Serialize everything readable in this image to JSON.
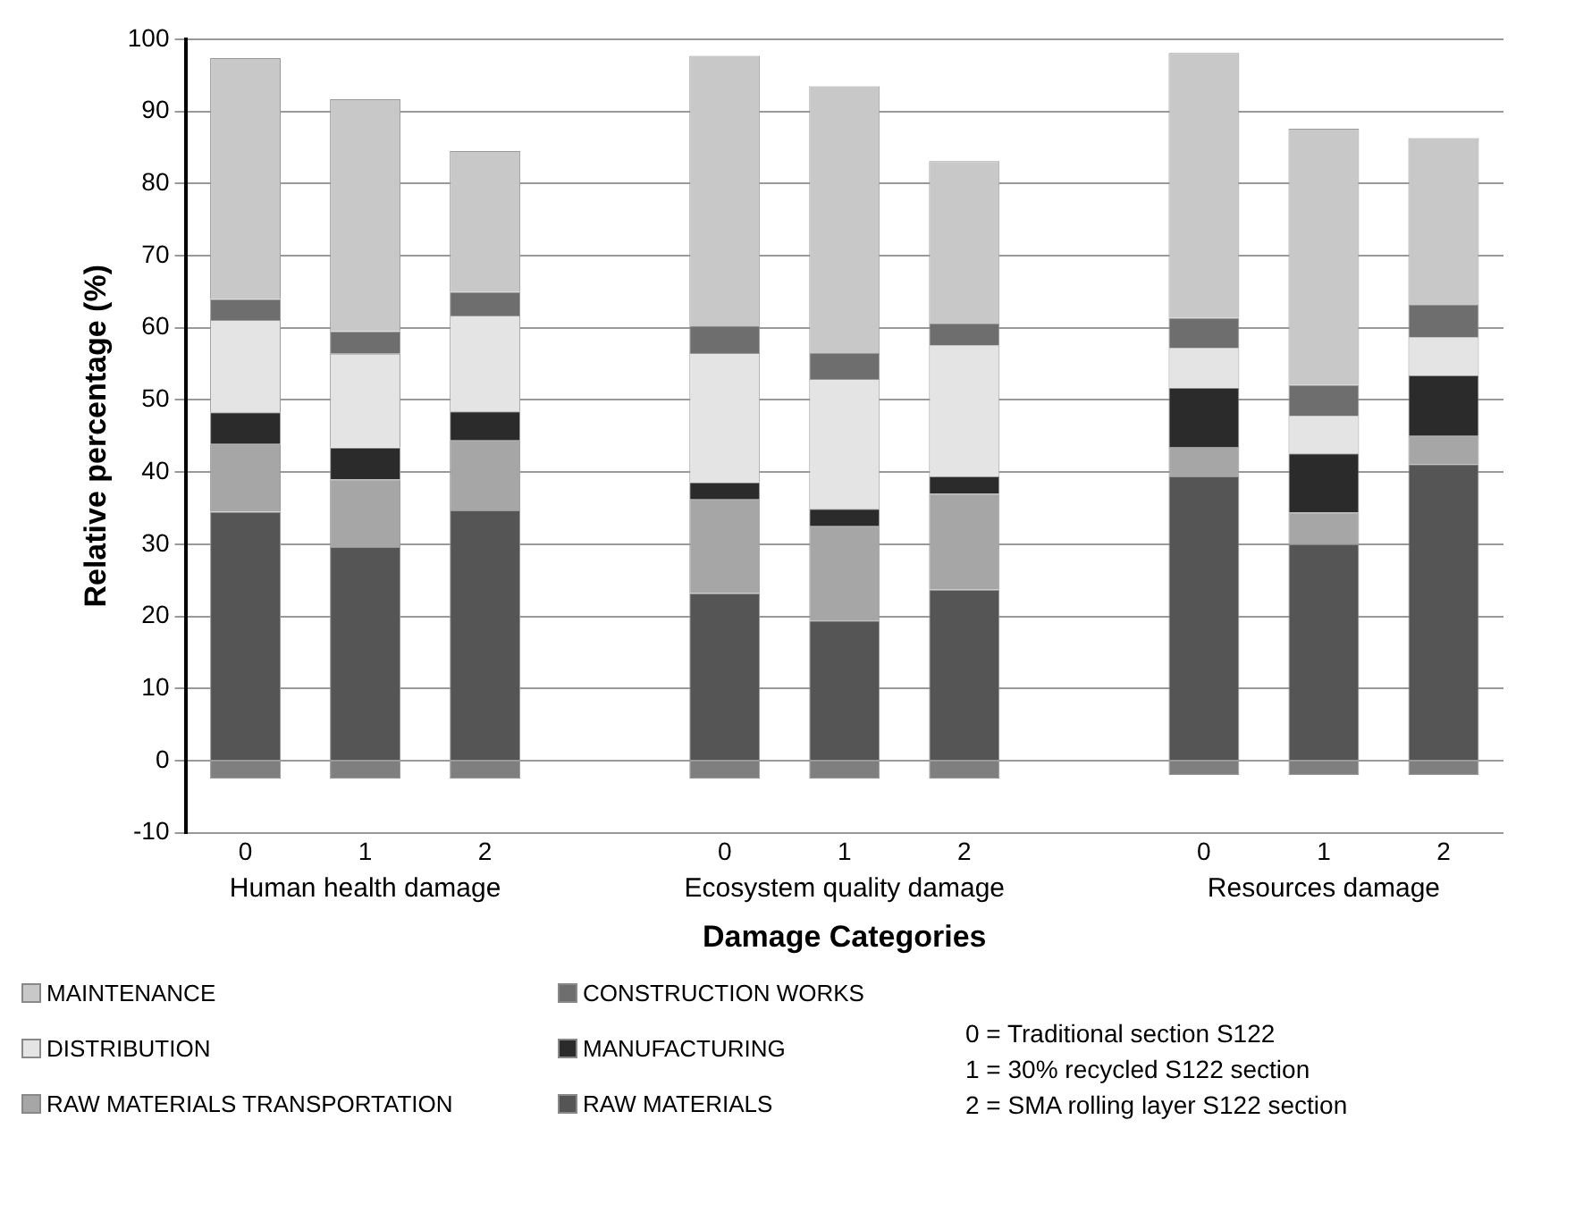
{
  "chart_data": {
    "type": "bar",
    "stacked": true,
    "xlabel": "Damage Categories",
    "ylabel": "Relative percentage (%)",
    "categories": [
      "0",
      "1",
      "2",
      null,
      "0",
      "1",
      "2",
      null,
      "0",
      "1",
      "2"
    ],
    "series": [
      {
        "name": "RAW MATERIALS",
        "color": "#555555",
        "values": [
          34.5,
          29.6,
          34.7,
          null,
          23.2,
          19.4,
          23.7,
          null,
          39.4,
          30.0,
          41.1
        ]
      },
      {
        "name": "RAW MATERIALS TRANSPORTATION",
        "color": "#a6a6a6",
        "values": [
          9.4,
          9.4,
          9.7,
          null,
          13.0,
          13.1,
          13.3,
          null,
          4.1,
          4.4,
          3.9
        ]
      },
      {
        "name": "MANUFACTURING",
        "color": "#2b2b2b",
        "values": [
          4.4,
          4.4,
          4.0,
          null,
          2.4,
          2.4,
          2.4,
          null,
          8.2,
          8.2,
          8.4
        ]
      },
      {
        "name": "DISTRIBUTION",
        "color": "#e4e4e4",
        "values": [
          12.8,
          13.0,
          13.3,
          null,
          17.9,
          18.0,
          18.2,
          null,
          5.5,
          5.2,
          5.3
        ]
      },
      {
        "name": "CONSTRUCTION WORKS",
        "color": "#6e6e6e",
        "values": [
          2.9,
          3.1,
          3.3,
          null,
          3.8,
          3.6,
          3.0,
          null,
          4.2,
          4.3,
          4.5
        ]
      },
      {
        "name": "MAINTENANCE",
        "color": "#c8c8c8",
        "values": [
          33.4,
          32.2,
          19.5,
          null,
          37.4,
          37.0,
          22.5,
          null,
          36.7,
          35.5,
          23.1
        ]
      },
      {
        "color": "#7f7f7f",
        "values": [
          -2.5,
          -2.5,
          -2.5,
          null,
          -2.5,
          -2.5,
          -2.5,
          null,
          -2.0,
          -2.0,
          -2.0
        ]
      }
    ],
    "ylim": [
      -10,
      100
    ],
    "yticks": [
      -10,
      0,
      10,
      20,
      30,
      40,
      50,
      60,
      70,
      80,
      90,
      100
    ],
    "grid": "y",
    "legend": "bottom",
    "annotations": [
      "Human health damage",
      "Ecosystem quality damage",
      "Resources damage",
      "0 = Traditional section S122",
      "1 = 30% recycled S122 section",
      "2 = SMA rolling layer S122 section"
    ]
  }
}
